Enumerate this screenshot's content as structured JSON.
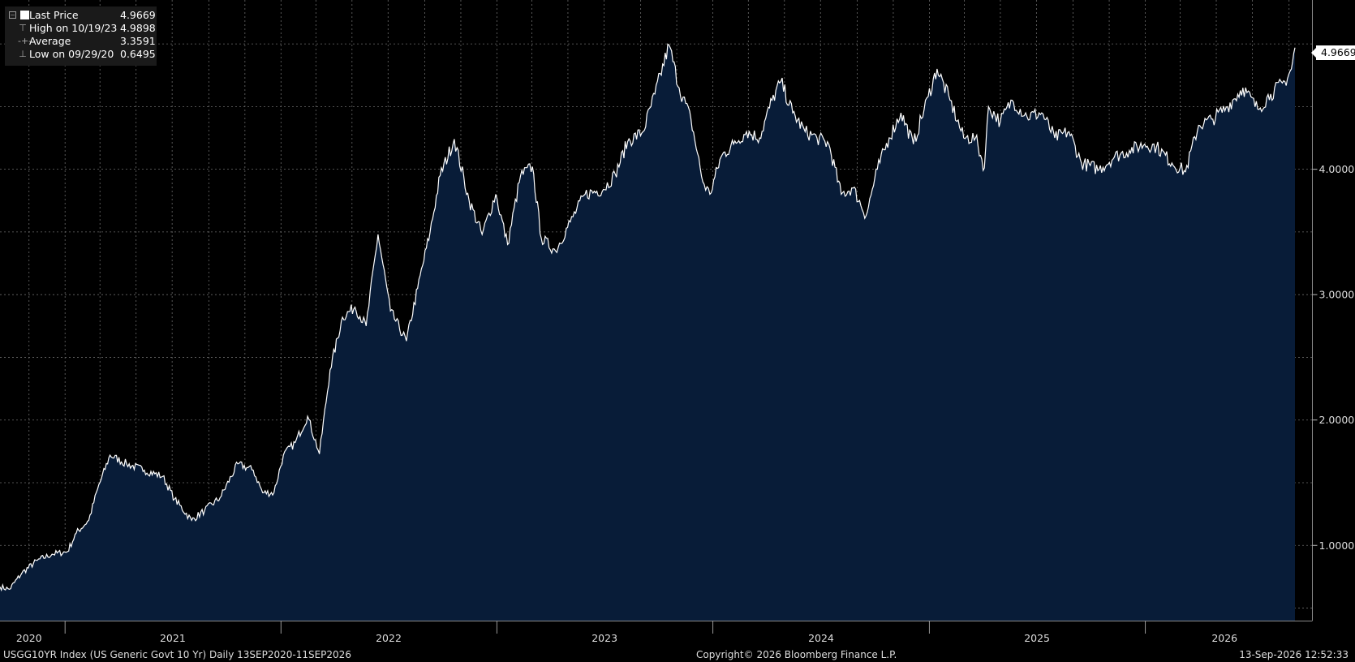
{
  "legend": {
    "last_price_label": "Last Price",
    "last_price_value": "4.9669",
    "high_label": "High on 10/19/23",
    "high_value": "4.9898",
    "average_label": "Average",
    "average_value": "3.3591",
    "low_label": "Low on 09/29/20",
    "low_value": "0.6495"
  },
  "last_price_badge": "4.9669",
  "footer": {
    "left": "USGG10YR Index (US Generic Govt 10 Yr) Daily 13SEP2020-11SEP2026",
    "center": "Copyright© 2026 Bloomberg Finance L.P.",
    "right": "13-Sep-2026 12:52:33"
  },
  "colors": {
    "background": "#000000",
    "area_fill": "#081c38",
    "line": "#ffffff",
    "grid": "#6b6b6b",
    "legend_bg": "#1a1a1a"
  },
  "chart_data": {
    "type": "area",
    "title": "",
    "xlabel": "",
    "ylabel": "",
    "x_range": [
      "2020-09-13",
      "2026-09-11"
    ],
    "ylim": [
      0.4,
      5.35
    ],
    "y_ticks": [
      1.0,
      2.0,
      3.0,
      4.0
    ],
    "y_tick_labels": [
      "1.0000",
      "2.0000",
      "3.0000",
      "4.0000"
    ],
    "x_year_labels": [
      {
        "label": "2020",
        "date": "2020-11-01"
      },
      {
        "label": "2021",
        "date": "2021-07-02"
      },
      {
        "label": "2022",
        "date": "2022-07-02"
      },
      {
        "label": "2023",
        "date": "2023-07-02"
      },
      {
        "label": "2024",
        "date": "2024-07-02"
      },
      {
        "label": "2025",
        "date": "2025-07-02"
      },
      {
        "label": "2026",
        "date": "2026-05-15"
      }
    ],
    "x_year_boundaries": [
      "2021-01-01",
      "2022-01-01",
      "2023-01-01",
      "2024-01-01",
      "2025-01-01",
      "2026-01-01"
    ],
    "grid": true,
    "legend_position": "top-left",
    "series": [
      {
        "name": "Last Price",
        "x": [
          "2020-09-13",
          "2020-09-29",
          "2020-10-20",
          "2020-11-15",
          "2020-12-10",
          "2021-01-05",
          "2021-01-20",
          "2021-02-10",
          "2021-02-25",
          "2021-03-18",
          "2021-04-15",
          "2021-05-15",
          "2021-06-15",
          "2021-07-05",
          "2021-08-03",
          "2021-08-25",
          "2021-09-20",
          "2021-10-20",
          "2021-11-15",
          "2021-12-01",
          "2021-12-20",
          "2022-01-05",
          "2022-01-25",
          "2022-02-15",
          "2022-03-07",
          "2022-03-25",
          "2022-04-15",
          "2022-05-06",
          "2022-05-25",
          "2022-06-14",
          "2022-07-05",
          "2022-08-01",
          "2022-08-20",
          "2022-09-10",
          "2022-09-27",
          "2022-10-21",
          "2022-11-15",
          "2022-12-07",
          "2022-12-30",
          "2023-01-19",
          "2023-02-10",
          "2023-03-02",
          "2023-03-17",
          "2023-04-10",
          "2023-05-05",
          "2023-05-30",
          "2023-06-30",
          "2023-07-20",
          "2023-08-10",
          "2023-09-05",
          "2023-09-25",
          "2023-10-19",
          "2023-11-05",
          "2023-11-25",
          "2023-12-15",
          "2023-12-27",
          "2024-01-15",
          "2024-02-05",
          "2024-02-27",
          "2024-03-20",
          "2024-04-10",
          "2024-04-25",
          "2024-05-15",
          "2024-06-05",
          "2024-06-25",
          "2024-07-15",
          "2024-08-05",
          "2024-08-25",
          "2024-09-16",
          "2024-10-05",
          "2024-10-25",
          "2024-11-14",
          "2024-12-05",
          "2024-12-30",
          "2025-01-14",
          "2025-02-05",
          "2025-02-28",
          "2025-03-20",
          "2025-04-04",
          "2025-04-11",
          "2025-05-01",
          "2025-05-21",
          "2025-06-15",
          "2025-07-10",
          "2025-08-01",
          "2025-08-25",
          "2025-09-15",
          "2025-10-15",
          "2025-11-10",
          "2025-12-05",
          "2025-12-31",
          "2026-01-20",
          "2026-02-15",
          "2026-03-10",
          "2026-04-01",
          "2026-04-25",
          "2026-05-20",
          "2026-06-15",
          "2026-07-10",
          "2026-08-01",
          "2026-08-25",
          "2026-09-05",
          "2026-09-11"
        ],
        "y": [
          0.67,
          0.65,
          0.78,
          0.88,
          0.93,
          0.95,
          1.1,
          1.2,
          1.45,
          1.72,
          1.65,
          1.6,
          1.55,
          1.37,
          1.2,
          1.28,
          1.38,
          1.65,
          1.6,
          1.42,
          1.42,
          1.72,
          1.82,
          2.03,
          1.73,
          2.4,
          2.82,
          2.9,
          2.75,
          3.48,
          2.87,
          2.63,
          3.05,
          3.5,
          3.95,
          4.24,
          3.75,
          3.48,
          3.8,
          3.4,
          3.95,
          4.02,
          3.45,
          3.35,
          3.58,
          3.8,
          3.84,
          3.96,
          4.22,
          4.3,
          4.6,
          4.99,
          4.65,
          4.4,
          3.9,
          3.8,
          4.1,
          4.2,
          4.3,
          4.25,
          4.55,
          4.7,
          4.45,
          4.3,
          4.25,
          4.2,
          3.8,
          3.85,
          3.63,
          4.0,
          4.25,
          4.45,
          4.2,
          4.58,
          4.8,
          4.55,
          4.25,
          4.25,
          4.01,
          4.5,
          4.38,
          4.55,
          4.42,
          4.45,
          4.25,
          4.3,
          4.05,
          4.0,
          4.1,
          4.15,
          4.2,
          4.18,
          4.05,
          3.98,
          4.35,
          4.4,
          4.5,
          4.65,
          4.48,
          4.6,
          4.7,
          4.8,
          4.97
        ]
      }
    ]
  }
}
